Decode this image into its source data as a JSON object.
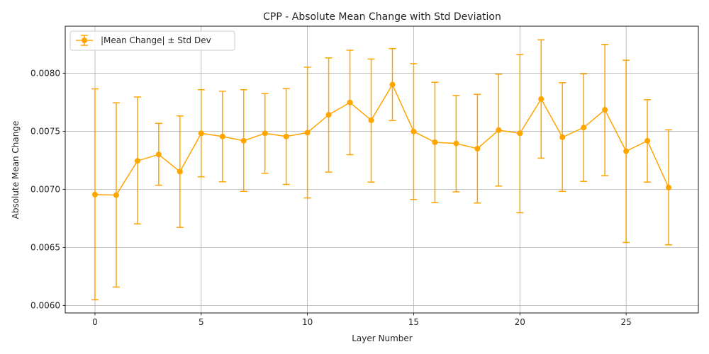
{
  "chart_data": {
    "type": "line",
    "title": "CPP - Absolute Mean Change with Std Deviation",
    "xlabel": "Layer Number",
    "ylabel": "Absolute Mean Change",
    "xlim": [
      -1.4,
      28.4
    ],
    "ylim": [
      0.005935,
      0.008405
    ],
    "xticks": [
      0,
      5,
      10,
      15,
      20,
      25
    ],
    "xtick_labels": [
      "0",
      "5",
      "10",
      "15",
      "20",
      "25"
    ],
    "yticks": [
      0.006,
      0.0065,
      0.007,
      0.0075,
      0.008
    ],
    "ytick_labels": [
      "0.0060",
      "0.0065",
      "0.0070",
      "0.0075",
      "0.0080"
    ],
    "grid": true,
    "legend_position": "top-left",
    "color": "#ffa500",
    "series": [
      {
        "name": "|Mean Change| ± Std Dev",
        "x": [
          0,
          1,
          2,
          3,
          4,
          5,
          6,
          7,
          8,
          9,
          10,
          11,
          12,
          13,
          14,
          15,
          16,
          17,
          18,
          19,
          20,
          21,
          22,
          23,
          24,
          25,
          26,
          27
        ],
        "y": [
          0.006955,
          0.00695,
          0.007245,
          0.0073,
          0.007152,
          0.007482,
          0.007455,
          0.007418,
          0.007482,
          0.007455,
          0.007488,
          0.007642,
          0.007748,
          0.007595,
          0.007902,
          0.007498,
          0.007405,
          0.007395,
          0.00735,
          0.00751,
          0.007482,
          0.007778,
          0.007448,
          0.007532,
          0.007685,
          0.007328,
          0.007418,
          0.007015
        ],
        "err_low": [
          0.006048,
          0.006158,
          0.006702,
          0.007035,
          0.006672,
          0.007108,
          0.007065,
          0.006982,
          0.007138,
          0.007042,
          0.006925,
          0.007148,
          0.007298,
          0.007062,
          0.007592,
          0.006912,
          0.006885,
          0.006978,
          0.006882,
          0.007028,
          0.006798,
          0.007268,
          0.006982,
          0.007068,
          0.007118,
          0.006542,
          0.007062,
          0.006522
        ],
        "err_high": [
          0.007865,
          0.007745,
          0.007795,
          0.007568,
          0.007632,
          0.007858,
          0.007845,
          0.007858,
          0.007825,
          0.007868,
          0.008052,
          0.008132,
          0.008198,
          0.008122,
          0.008212,
          0.008082,
          0.007922,
          0.007808,
          0.007818,
          0.007992,
          0.008162,
          0.008288,
          0.007918,
          0.007995,
          0.008248,
          0.008112,
          0.007772,
          0.007512
        ]
      }
    ]
  }
}
